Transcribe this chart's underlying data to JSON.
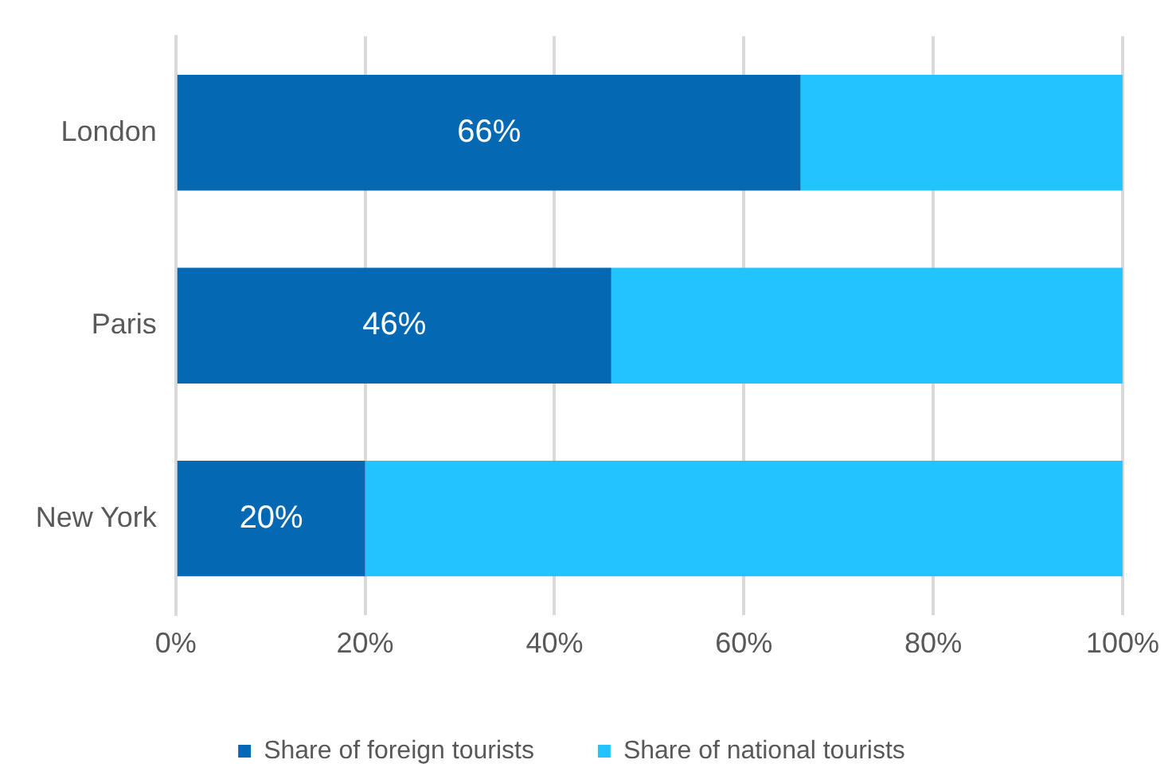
{
  "chart_data": {
    "type": "bar",
    "orientation": "horizontal",
    "stacked": true,
    "categories": [
      "London",
      "Paris",
      "New York"
    ],
    "series": [
      {
        "name": "Share of foreign tourists",
        "color": "#0568b3",
        "values": [
          66,
          46,
          20
        ],
        "value_labels": [
          "66%",
          "46%",
          "20%"
        ]
      },
      {
        "name": "Share of national tourists",
        "color": "#21c4fe",
        "values": [
          34,
          54,
          80
        ]
      }
    ],
    "xlim": [
      0,
      100
    ],
    "xticks": [
      {
        "value": 0,
        "label": "0%"
      },
      {
        "value": 20,
        "label": "20%"
      },
      {
        "value": 40,
        "label": "40%"
      },
      {
        "value": 60,
        "label": "60%"
      },
      {
        "value": 80,
        "label": "80%"
      },
      {
        "value": 100,
        "label": "100%"
      }
    ],
    "grid": "x",
    "legend": "bottom"
  }
}
